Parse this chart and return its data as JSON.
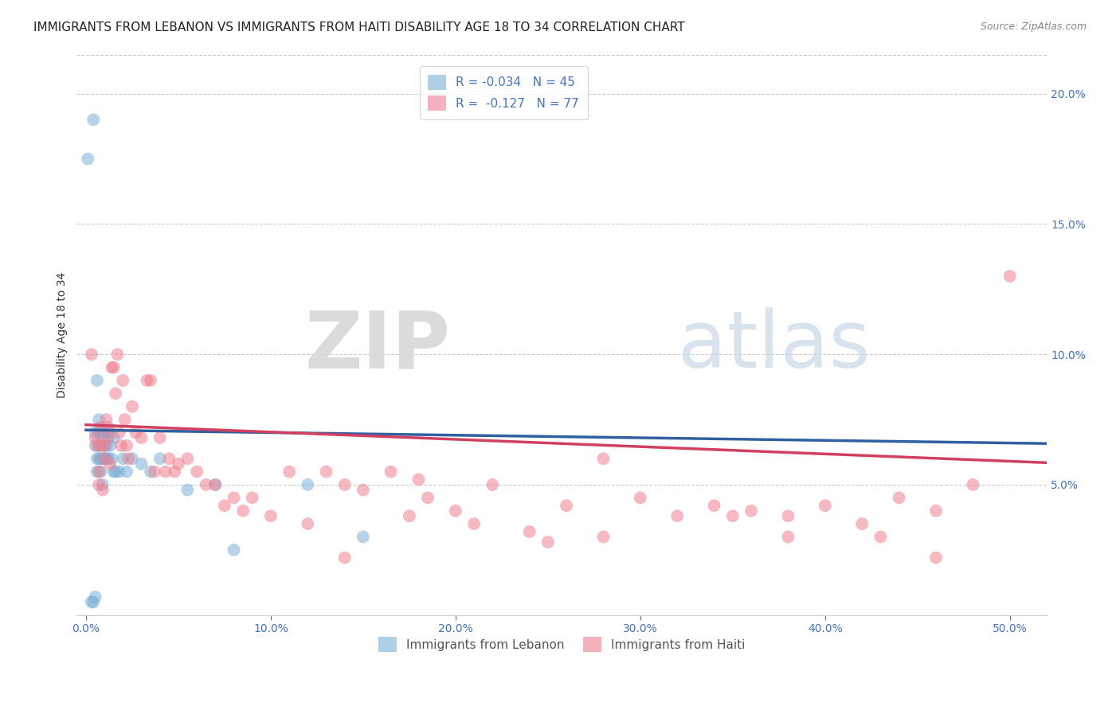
{
  "title": "IMMIGRANTS FROM LEBANON VS IMMIGRANTS FROM HAITI DISABILITY AGE 18 TO 34 CORRELATION CHART",
  "source": "Source: ZipAtlas.com",
  "xlabel_ticks": [
    "0.0%",
    "10.0%",
    "20.0%",
    "30.0%",
    "40.0%",
    "50.0%"
  ],
  "xlabel_vals": [
    0.0,
    0.1,
    0.2,
    0.3,
    0.4,
    0.5
  ],
  "ylabel": "Disability Age 18 to 34",
  "ylabel_right_ticks": [
    "20.0%",
    "15.0%",
    "10.0%",
    "5.0%"
  ],
  "ylabel_right_vals": [
    0.2,
    0.15,
    0.1,
    0.05
  ],
  "ylim": [
    0.0,
    0.215
  ],
  "xlim": [
    -0.005,
    0.52
  ],
  "lebanon_color": "#7ab0d8",
  "haiti_color": "#f08090",
  "lebanon_line_color": "#3060a0",
  "haiti_line_color": "#d04060",
  "lebanon_x": [
    0.001,
    0.003,
    0.004,
    0.004,
    0.005,
    0.005,
    0.005,
    0.006,
    0.006,
    0.006,
    0.007,
    0.007,
    0.007,
    0.007,
    0.008,
    0.008,
    0.008,
    0.009,
    0.009,
    0.009,
    0.01,
    0.01,
    0.01,
    0.011,
    0.011,
    0.012,
    0.012,
    0.013,
    0.013,
    0.014,
    0.015,
    0.015,
    0.016,
    0.018,
    0.02,
    0.022,
    0.025,
    0.03,
    0.035,
    0.04,
    0.055,
    0.07,
    0.08,
    0.12,
    0.15
  ],
  "lebanon_y": [
    0.175,
    0.005,
    0.005,
    0.19,
    0.007,
    0.065,
    0.07,
    0.06,
    0.055,
    0.09,
    0.06,
    0.065,
    0.07,
    0.075,
    0.055,
    0.06,
    0.07,
    0.05,
    0.06,
    0.068,
    0.06,
    0.065,
    0.07,
    0.06,
    0.065,
    0.06,
    0.07,
    0.065,
    0.07,
    0.06,
    0.055,
    0.068,
    0.055,
    0.055,
    0.06,
    0.055,
    0.06,
    0.058,
    0.055,
    0.06,
    0.048,
    0.05,
    0.025,
    0.05,
    0.03
  ],
  "haiti_x": [
    0.003,
    0.005,
    0.006,
    0.007,
    0.007,
    0.008,
    0.008,
    0.009,
    0.01,
    0.01,
    0.011,
    0.012,
    0.012,
    0.013,
    0.014,
    0.015,
    0.016,
    0.017,
    0.018,
    0.019,
    0.02,
    0.021,
    0.022,
    0.023,
    0.025,
    0.027,
    0.03,
    0.033,
    0.035,
    0.037,
    0.04,
    0.043,
    0.045,
    0.048,
    0.05,
    0.055,
    0.06,
    0.065,
    0.07,
    0.075,
    0.08,
    0.085,
    0.09,
    0.1,
    0.11,
    0.12,
    0.13,
    0.14,
    0.15,
    0.165,
    0.175,
    0.185,
    0.2,
    0.21,
    0.22,
    0.24,
    0.26,
    0.28,
    0.3,
    0.32,
    0.34,
    0.36,
    0.38,
    0.4,
    0.42,
    0.44,
    0.46,
    0.48,
    0.5,
    0.38,
    0.28,
    0.43,
    0.35,
    0.25,
    0.18,
    0.14,
    0.46
  ],
  "haiti_y": [
    0.1,
    0.068,
    0.065,
    0.055,
    0.05,
    0.072,
    0.065,
    0.048,
    0.065,
    0.06,
    0.075,
    0.072,
    0.068,
    0.058,
    0.095,
    0.095,
    0.085,
    0.1,
    0.07,
    0.065,
    0.09,
    0.075,
    0.065,
    0.06,
    0.08,
    0.07,
    0.068,
    0.09,
    0.09,
    0.055,
    0.068,
    0.055,
    0.06,
    0.055,
    0.058,
    0.06,
    0.055,
    0.05,
    0.05,
    0.042,
    0.045,
    0.04,
    0.045,
    0.038,
    0.055,
    0.035,
    0.055,
    0.05,
    0.048,
    0.055,
    0.038,
    0.045,
    0.04,
    0.035,
    0.05,
    0.032,
    0.042,
    0.03,
    0.045,
    0.038,
    0.042,
    0.04,
    0.038,
    0.042,
    0.035,
    0.045,
    0.04,
    0.05,
    0.13,
    0.03,
    0.06,
    0.03,
    0.038,
    0.028,
    0.052,
    0.022,
    0.022
  ],
  "watermark_zip": "ZIP",
  "watermark_atlas": "atlas",
  "background_color": "#ffffff",
  "grid_color": "#cccccc",
  "title_fontsize": 11,
  "axis_label_fontsize": 10,
  "tick_fontsize": 10,
  "legend_fontsize": 11,
  "tick_color": "#4472c4",
  "text_color": "#333333"
}
